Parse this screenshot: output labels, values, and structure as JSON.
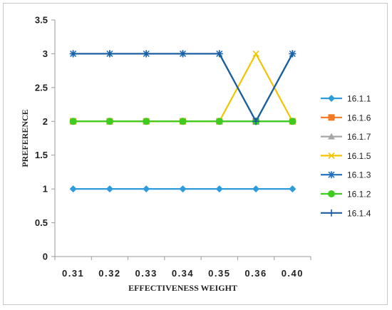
{
  "chart_data": {
    "type": "line",
    "title": "",
    "xlabel": "EFFECTIVENESS WEIGHT",
    "ylabel": "PREFERENCE",
    "categories": [
      "0.31",
      "0.32",
      "0.33",
      "0.34",
      "0.35",
      "0.36",
      "0.40"
    ],
    "ylim": [
      0,
      3.5
    ],
    "yticks": [
      "0",
      "0.5",
      "1",
      "1.5",
      "2",
      "2.5",
      "3",
      "3.5"
    ],
    "grid": false,
    "legend_position": "right",
    "series": [
      {
        "name": "16.1.1",
        "color": "#2E9BDB",
        "marker": "diamond",
        "values": [
          1,
          1,
          1,
          1,
          1,
          1,
          1
        ]
      },
      {
        "name": "16.1.6",
        "color": "#F47920",
        "marker": "square",
        "values": [
          2,
          2,
          2,
          2,
          2,
          2,
          2
        ]
      },
      {
        "name": "16.1.7",
        "color": "#A6A6A6",
        "marker": "triangle",
        "values": [
          2,
          2,
          2,
          2,
          2,
          2,
          2
        ]
      },
      {
        "name": "16.1.5",
        "color": "#F2C500",
        "marker": "x",
        "values": [
          2,
          2,
          2,
          2,
          2,
          3,
          2
        ]
      },
      {
        "name": "16.1.3",
        "color": "#1F6FBF",
        "marker": "star",
        "values": [
          3,
          3,
          3,
          3,
          3,
          2,
          3
        ]
      },
      {
        "name": "16.1.2",
        "color": "#3DCC1F",
        "marker": "circle",
        "values": [
          2,
          2,
          2,
          2,
          2,
          2,
          2
        ]
      },
      {
        "name": "16.1.4",
        "color": "#1B5E9E",
        "marker": "plus",
        "values": [
          3,
          3,
          3,
          3,
          3,
          2,
          3
        ]
      }
    ]
  }
}
